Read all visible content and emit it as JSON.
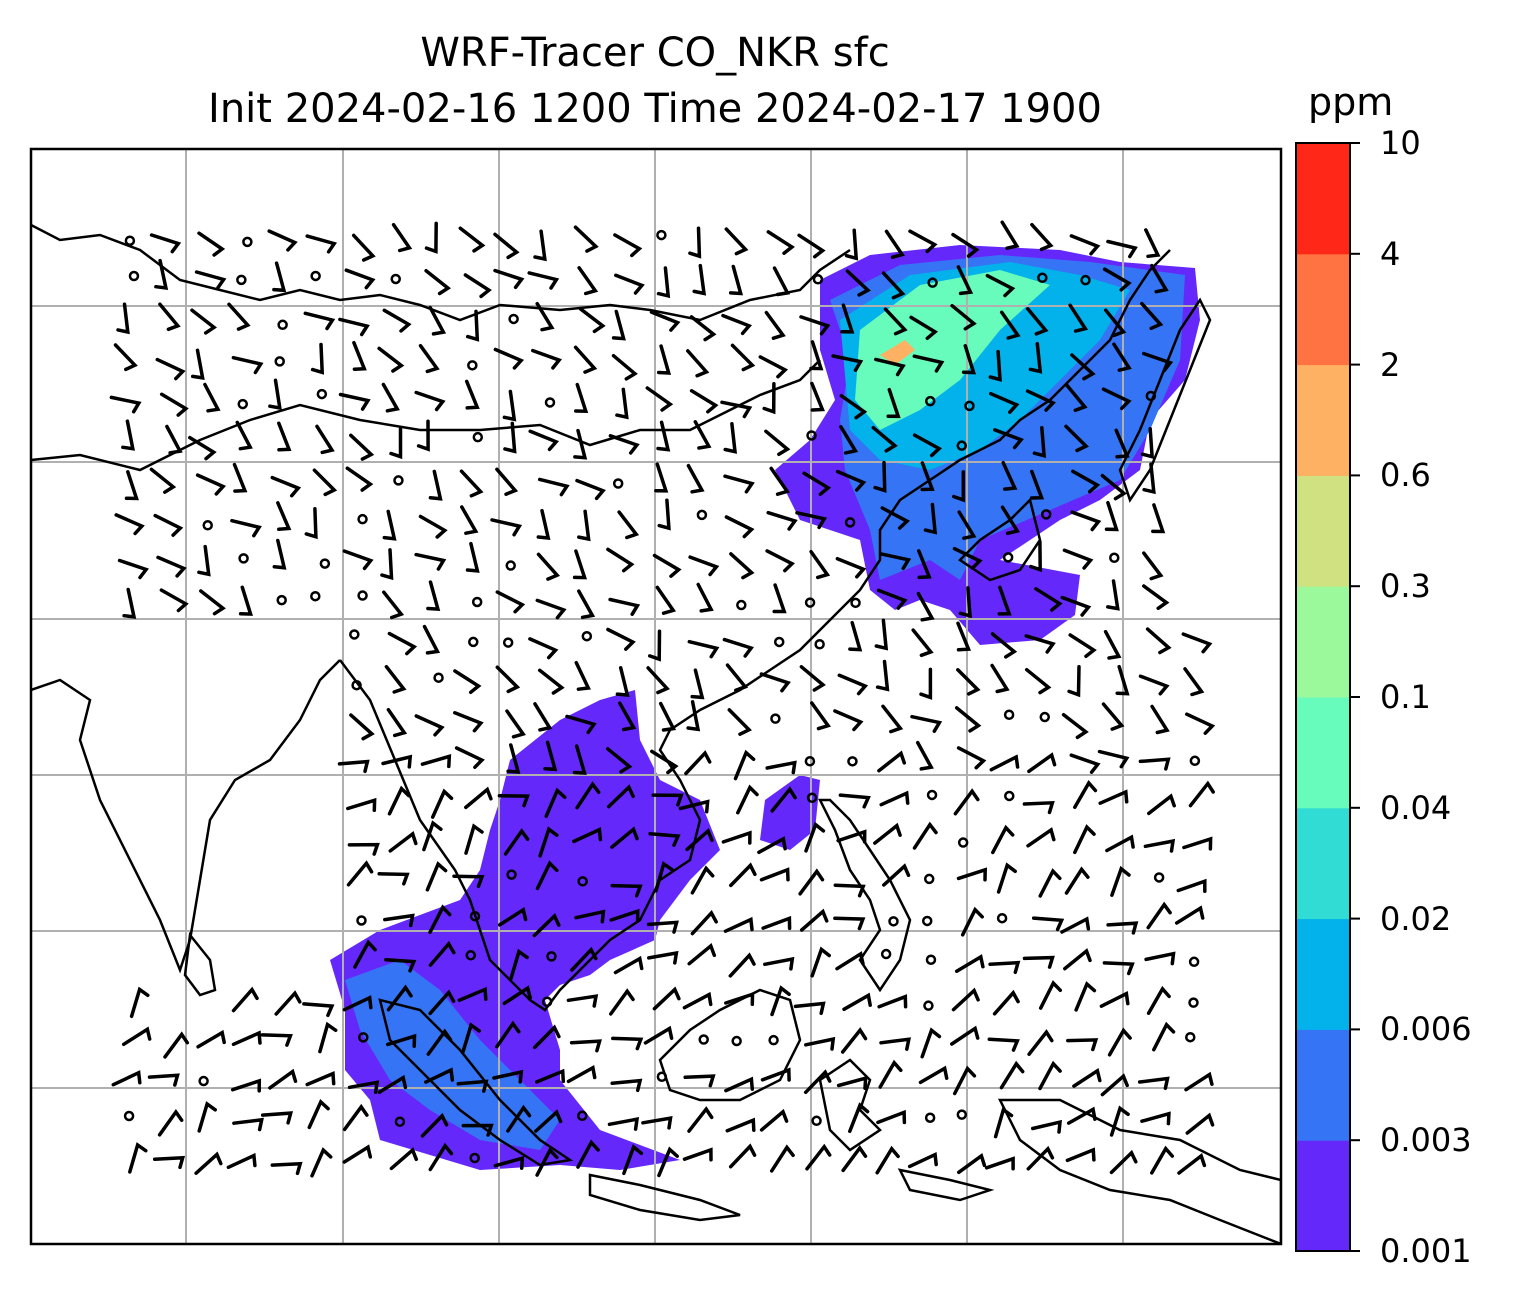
{
  "title": {
    "line1": "WRF-Tracer CO_NKR sfc",
    "line2": "Init 2024-02-16 1200 Time 2024-02-17 1900"
  },
  "colorbar": {
    "unit": "ppm",
    "levels": [
      "0.001",
      "0.003",
      "0.006",
      "0.02",
      "0.04",
      "0.1",
      "0.3",
      "0.6",
      "2",
      "4",
      "10"
    ],
    "colors": [
      "#6528fa",
      "#3574f4",
      "#03b1eb",
      "#31dcd4",
      "#68fcbc",
      "#9bf99b",
      "#d0e182",
      "#feb063",
      "#ff7241",
      "#ff2818"
    ]
  },
  "map": {
    "layer_colors": {
      "land_outline": "#000000",
      "gridline": "#b0b0b0",
      "lowest_band": "#6528fa",
      "low_band": "#3574f4",
      "mid_band": "#03b1eb",
      "upper_band": "#68fcbc",
      "peak_band": "#feb063"
    },
    "wind_barbs": "black"
  }
}
